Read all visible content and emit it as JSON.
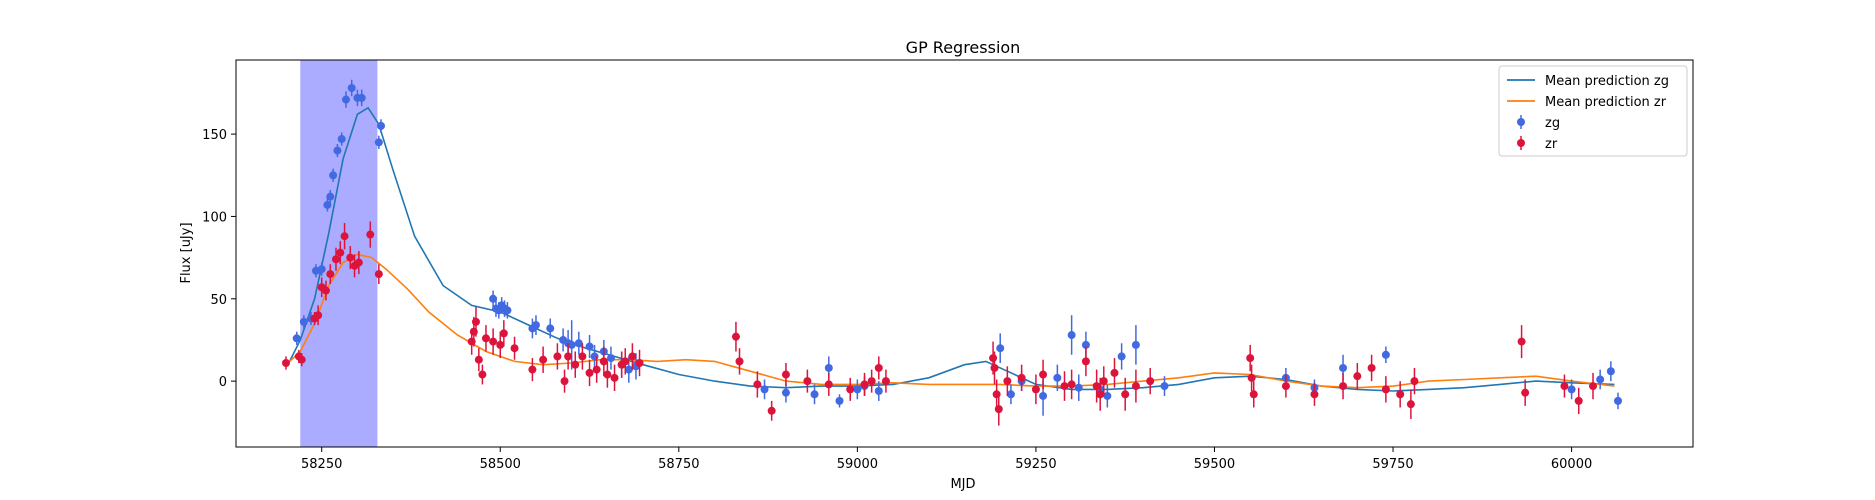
{
  "chart_data": {
    "type": "scatter",
    "title": "GP Regression",
    "xlabel": "MJD",
    "ylabel": "Flux [uJy]",
    "xlim": [
      58130,
      60170
    ],
    "ylim": [
      -40,
      195
    ],
    "xticks": [
      58250,
      58500,
      58750,
      59000,
      59250,
      59500,
      59750,
      60000
    ],
    "yticks": [
      0,
      50,
      100,
      150
    ],
    "grid": false,
    "legend_position": "top-right",
    "highlight_span": {
      "x0": 58220,
      "x1": 58328,
      "color": "#a6a6ff"
    },
    "lines": [
      {
        "name": "Mean prediction zg",
        "color": "#1f77b4",
        "x": [
          58205,
          58220,
          58240,
          58260,
          58280,
          58300,
          58315,
          58330,
          58350,
          58380,
          58420,
          58460,
          58500,
          58540,
          58580,
          58620,
          58660,
          58700,
          58750,
          58800,
          58850,
          58900,
          58950,
          59000,
          59050,
          59100,
          59150,
          59180,
          59210,
          59250,
          59300,
          59350,
          59400,
          59450,
          59500,
          59550,
          59600,
          59650,
          59700,
          59750,
          59800,
          59850,
          59900,
          59950,
          60000,
          60060
        ],
        "y": [
          12,
          25,
          50,
          90,
          135,
          162,
          166,
          156,
          128,
          88,
          58,
          46,
          42,
          34,
          26,
          20,
          15,
          10,
          4,
          0,
          -3,
          -4,
          -3,
          -3,
          -2,
          2,
          10,
          12,
          6,
          -2,
          -5,
          -5,
          -4,
          -2,
          2,
          3,
          1,
          -3,
          -5,
          -6,
          -5,
          -4,
          -2,
          0,
          -1,
          -2
        ]
      },
      {
        "name": "Mean prediction zr",
        "color": "#ff7f0e",
        "x": [
          58205,
          58220,
          58240,
          58260,
          58280,
          58300,
          58320,
          58340,
          58370,
          58400,
          58440,
          58480,
          58520,
          58560,
          58600,
          58640,
          58680,
          58720,
          58760,
          58800,
          58850,
          58900,
          58950,
          59000,
          59050,
          59100,
          59150,
          59200,
          59250,
          59300,
          59350,
          59400,
          59450,
          59500,
          59550,
          59600,
          59650,
          59700,
          59750,
          59800,
          59850,
          59900,
          59950,
          60000,
          60060
        ],
        "y": [
          12,
          18,
          35,
          58,
          72,
          77,
          75,
          68,
          56,
          42,
          28,
          18,
          12,
          10,
          11,
          13,
          13,
          12,
          13,
          12,
          6,
          0,
          -2,
          -2,
          -1,
          -2,
          -2,
          -2,
          -3,
          -3,
          -2,
          0,
          2,
          5,
          4,
          0,
          -3,
          -4,
          -3,
          0,
          1,
          2,
          3,
          0,
          -3
        ]
      }
    ],
    "series": [
      {
        "name": "zg",
        "color": "#4169e1",
        "x": [
          58215,
          58225,
          58235,
          58242,
          58250,
          58258,
          58262,
          58266,
          58272,
          58278,
          58284,
          58292,
          58300,
          58306,
          58330,
          58333,
          58490,
          58494,
          58498,
          58502,
          58506,
          58510,
          58545,
          58550,
          58570,
          58588,
          58595,
          58600,
          58610,
          58625,
          58632,
          58645,
          58655,
          58670,
          58680,
          58690,
          58870,
          58900,
          58940,
          58960,
          58975,
          59000,
          59010,
          59030,
          59200,
          59215,
          59230,
          59260,
          59280,
          59300,
          59310,
          59320,
          59340,
          59350,
          59370,
          59390,
          59430,
          59600,
          59640,
          59680,
          59740,
          60000,
          60040,
          60055,
          60065
        ],
        "y": [
          26,
          36,
          38,
          67,
          68,
          107,
          112,
          125,
          140,
          147,
          171,
          178,
          172,
          172,
          145,
          155,
          50,
          44,
          43,
          46,
          44,
          43,
          32,
          34,
          32,
          25,
          23,
          22,
          23,
          21,
          15,
          18,
          14,
          10,
          7,
          9,
          -5,
          -7,
          -8,
          8,
          -12,
          -5,
          -3,
          -6,
          20,
          -8,
          0,
          -9,
          2,
          28,
          -4,
          22,
          -5,
          -9,
          15,
          22,
          -3,
          2,
          -4,
          8,
          16,
          -5,
          1,
          6,
          -12
        ],
        "err": [
          4,
          4,
          4,
          4,
          4,
          4,
          4,
          4,
          4,
          4,
          5,
          5,
          5,
          5,
          4,
          4,
          5,
          5,
          5,
          5,
          5,
          5,
          6,
          6,
          6,
          7,
          8,
          15,
          7,
          7,
          7,
          7,
          7,
          8,
          8,
          8,
          6,
          6,
          6,
          7,
          4,
          6,
          6,
          6,
          9,
          6,
          6,
          12,
          8,
          12,
          8,
          8,
          6,
          7,
          8,
          12,
          6,
          6,
          5,
          8,
          5,
          6,
          6,
          6,
          5
        ]
      },
      {
        "name": "zr",
        "color": "#dc143c",
        "x": [
          58200,
          58218,
          58222,
          58240,
          58245,
          58250,
          58256,
          58262,
          58270,
          58276,
          58282,
          58290,
          58296,
          58302,
          58318,
          58330,
          58460,
          58463,
          58466,
          58470,
          58475,
          58480,
          58490,
          58500,
          58505,
          58520,
          58545,
          58560,
          58580,
          58590,
          58595,
          58605,
          58615,
          58625,
          58635,
          58645,
          58650,
          58660,
          58670,
          58675,
          58685,
          58695,
          58830,
          58835,
          58860,
          58880,
          58900,
          58930,
          58960,
          58990,
          59010,
          59020,
          59030,
          59040,
          59190,
          59192,
          59195,
          59198,
          59210,
          59230,
          59250,
          59260,
          59290,
          59300,
          59320,
          59335,
          59340,
          59345,
          59360,
          59375,
          59390,
          59410,
          59550,
          59552,
          59555,
          59600,
          59640,
          59680,
          59700,
          59720,
          59740,
          59760,
          59775,
          59780,
          59930,
          59935,
          59990,
          60010,
          60030
        ],
        "y": [
          11,
          15,
          13,
          38,
          40,
          57,
          55,
          65,
          74,
          78,
          88,
          75,
          70,
          72,
          89,
          65,
          24,
          30,
          36,
          13,
          4,
          26,
          24,
          22,
          29,
          20,
          7,
          13,
          15,
          0,
          15,
          10,
          15,
          5,
          7,
          12,
          4,
          2,
          10,
          12,
          15,
          11,
          27,
          12,
          -2,
          -18,
          4,
          0,
          -2,
          -5,
          -2,
          0,
          8,
          0,
          14,
          8,
          -8,
          -17,
          0,
          2,
          -5,
          4,
          -3,
          -2,
          12,
          -3,
          -8,
          0,
          5,
          -8,
          -3,
          0,
          14,
          2,
          -8,
          -3,
          -8,
          -3,
          3,
          8,
          -5,
          -8,
          -14,
          0,
          24,
          -7,
          -3,
          -12,
          -3
        ],
        "err": [
          4,
          4,
          4,
          4,
          6,
          6,
          6,
          6,
          7,
          7,
          8,
          7,
          7,
          7,
          8,
          6,
          8,
          9,
          9,
          7,
          6,
          8,
          8,
          8,
          8,
          7,
          7,
          8,
          8,
          7,
          8,
          8,
          8,
          8,
          8,
          9,
          8,
          8,
          8,
          8,
          8,
          8,
          9,
          8,
          8,
          6,
          7,
          7,
          7,
          7,
          7,
          7,
          7,
          7,
          10,
          10,
          9,
          10,
          9,
          8,
          9,
          9,
          9,
          9,
          9,
          10,
          10,
          9,
          9,
          10,
          10,
          8,
          8,
          8,
          8,
          7,
          7,
          8,
          8,
          8,
          8,
          8,
          9,
          8,
          10,
          8,
          7,
          8,
          8
        ]
      }
    ]
  }
}
